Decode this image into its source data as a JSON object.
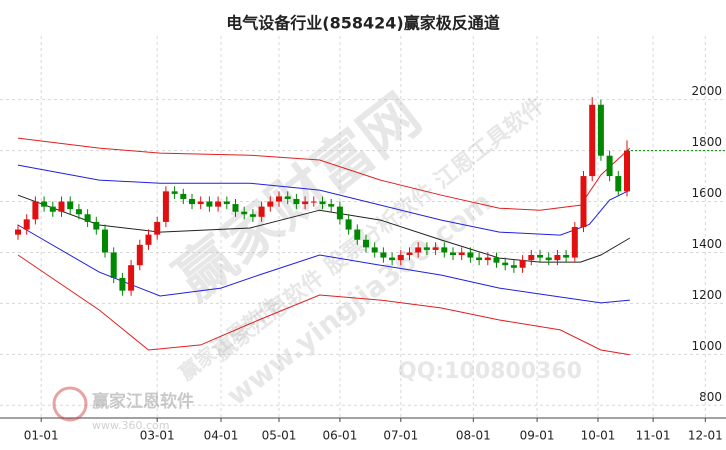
{
  "chart_data": {
    "type": "candlestick",
    "title": "电气设备行业(858424)赢家极反通道",
    "xlim": [
      0,
      240
    ],
    "xticks": [
      {
        "value": 8,
        "label": "01-01"
      },
      {
        "value": 48,
        "label": "03-01"
      },
      {
        "value": 70,
        "label": "04-01"
      },
      {
        "value": 90,
        "label": "05-01"
      },
      {
        "value": 111,
        "label": "06-01"
      },
      {
        "value": 132,
        "label": "07-01"
      },
      {
        "value": 157,
        "label": "08-01"
      },
      {
        "value": 179,
        "label": "09-01"
      },
      {
        "value": 200,
        "label": "10-01"
      },
      {
        "value": 219,
        "label": "11-01"
      },
      {
        "value": 237,
        "label": "12-01"
      }
    ],
    "ylim": [
      750,
      2250
    ],
    "yticks": [
      800,
      1000,
      1200,
      1400,
      1600,
      1800,
      2000
    ],
    "grid": true,
    "up_color": "#e01010",
    "down_color": "#008800",
    "last_line_color": "#008800",
    "x": [
      0,
      3,
      6,
      9,
      12,
      15,
      18,
      21,
      24,
      27,
      30,
      33,
      36,
      39,
      42,
      45,
      48,
      51,
      54,
      57,
      60,
      63,
      66,
      69,
      72,
      75,
      78,
      81,
      84,
      87,
      90,
      93,
      96,
      99,
      102,
      105,
      108,
      111,
      114,
      117,
      120,
      123,
      126,
      129,
      132,
      135,
      138,
      141,
      144,
      147,
      150,
      153,
      156,
      159,
      162,
      165,
      168,
      171,
      174,
      177,
      180,
      183,
      186,
      189,
      192,
      195,
      198,
      201,
      204,
      207,
      210
    ],
    "open": [
      1470,
      1490,
      1530,
      1600,
      1580,
      1560,
      1600,
      1570,
      1550,
      1520,
      1490,
      1400,
      1300,
      1250,
      1350,
      1430,
      1470,
      1520,
      1640,
      1630,
      1610,
      1590,
      1600,
      1580,
      1600,
      1590,
      1560,
      1550,
      1540,
      1580,
      1600,
      1620,
      1610,
      1590,
      1600,
      1600,
      1590,
      1580,
      1530,
      1490,
      1450,
      1420,
      1400,
      1380,
      1370,
      1390,
      1400,
      1420,
      1410,
      1420,
      1400,
      1390,
      1400,
      1380,
      1370,
      1380,
      1360,
      1350,
      1340,
      1370,
      1390,
      1380,
      1370,
      1390,
      1380,
      1500,
      1700,
      1980,
      1780,
      1700,
      1640
    ],
    "high": [
      1510,
      1550,
      1620,
      1620,
      1600,
      1620,
      1620,
      1590,
      1570,
      1540,
      1510,
      1420,
      1320,
      1370,
      1450,
      1490,
      1540,
      1660,
      1660,
      1650,
      1630,
      1620,
      1620,
      1620,
      1620,
      1610,
      1580,
      1570,
      1600,
      1620,
      1640,
      1640,
      1630,
      1620,
      1620,
      1620,
      1610,
      1600,
      1550,
      1510,
      1470,
      1440,
      1420,
      1400,
      1410,
      1420,
      1440,
      1440,
      1440,
      1440,
      1420,
      1420,
      1420,
      1400,
      1400,
      1400,
      1380,
      1370,
      1390,
      1410,
      1410,
      1400,
      1410,
      1410,
      1520,
      1720,
      2010,
      2000,
      1800,
      1720,
      1840
    ],
    "low": [
      1450,
      1470,
      1510,
      1560,
      1540,
      1540,
      1550,
      1530,
      1500,
      1470,
      1380,
      1280,
      1230,
      1230,
      1330,
      1410,
      1450,
      1500,
      1610,
      1590,
      1570,
      1570,
      1560,
      1560,
      1570,
      1540,
      1530,
      1520,
      1520,
      1560,
      1580,
      1590,
      1570,
      1570,
      1580,
      1570,
      1560,
      1510,
      1470,
      1430,
      1400,
      1380,
      1360,
      1350,
      1350,
      1370,
      1380,
      1390,
      1390,
      1380,
      1370,
      1370,
      1360,
      1350,
      1350,
      1340,
      1330,
      1320,
      1320,
      1350,
      1360,
      1350,
      1350,
      1360,
      1360,
      1480,
      1680,
      1760,
      1680,
      1620,
      1620
    ],
    "close": [
      1490,
      1530,
      1600,
      1580,
      1560,
      1600,
      1570,
      1550,
      1520,
      1490,
      1400,
      1300,
      1250,
      1350,
      1430,
      1470,
      1520,
      1640,
      1630,
      1610,
      1590,
      1600,
      1580,
      1600,
      1590,
      1560,
      1550,
      1540,
      1580,
      1600,
      1620,
      1610,
      1590,
      1600,
      1600,
      1590,
      1580,
      1530,
      1490,
      1450,
      1420,
      1400,
      1380,
      1370,
      1390,
      1400,
      1420,
      1410,
      1420,
      1400,
      1390,
      1400,
      1380,
      1370,
      1380,
      1360,
      1350,
      1340,
      1370,
      1390,
      1380,
      1370,
      1390,
      1380,
      1500,
      1700,
      1980,
      1780,
      1700,
      1640,
      1800
    ],
    "series": [
      {
        "color": "#e02020",
        "x": [
          0,
          28,
          49,
          80,
          104,
          125,
          146,
          166,
          180,
          194,
          201,
          211
        ],
        "values": [
          1849,
          1810,
          1790,
          1782,
          1763,
          1684,
          1625,
          1574,
          1566,
          1586,
          1704,
          1810
        ]
      },
      {
        "color": "#2020e0",
        "x": [
          0,
          28,
          49,
          80,
          104,
          125,
          146,
          166,
          187,
          197,
          204,
          211
        ],
        "values": [
          1743,
          1684,
          1672,
          1672,
          1645,
          1586,
          1527,
          1480,
          1468,
          1510,
          1606,
          1645
        ]
      },
      {
        "color": "#222222",
        "x": [
          0,
          28,
          49,
          80,
          104,
          125,
          146,
          166,
          180,
          194,
          201,
          211
        ],
        "values": [
          1625,
          1508,
          1480,
          1496,
          1566,
          1527,
          1449,
          1378,
          1362,
          1362,
          1390,
          1457
        ]
      },
      {
        "color": "#2020e0",
        "x": [
          0,
          28,
          49,
          70,
          83,
          104,
          125,
          146,
          166,
          187,
          201,
          211
        ],
        "values": [
          1508,
          1323,
          1229,
          1260,
          1311,
          1390,
          1350,
          1311,
          1260,
          1225,
          1202,
          1213
        ]
      },
      {
        "color": "#e02020",
        "x": [
          0,
          28,
          45,
          63,
          83,
          104,
          125,
          146,
          166,
          187,
          201,
          211
        ],
        "values": [
          1390,
          1174,
          1017,
          1037,
          1135,
          1233,
          1213,
          1182,
          1135,
          1096,
          1017,
          998
        ]
      }
    ]
  },
  "watermarks": {
    "brand": "赢家财富网",
    "qq": "QQ:100800360",
    "software": "赢家江恩软件",
    "site": "www.yingjia360.com",
    "diagonal": "赢家江恩软件 股票分析软件 江恩工具软件",
    "logo": "赢家江恩软件",
    "logo_url": "www.360.com"
  }
}
